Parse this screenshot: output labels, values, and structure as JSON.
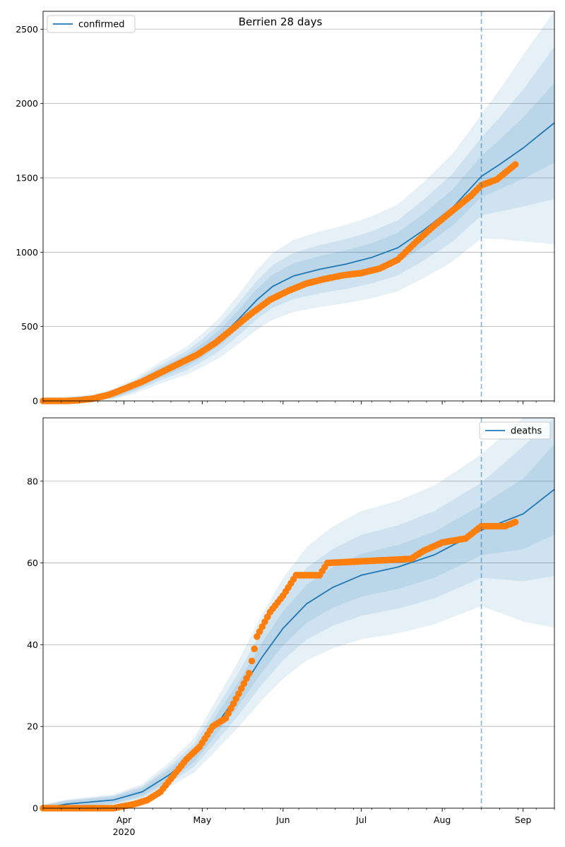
{
  "chart_data": [
    {
      "type": "line",
      "title": "Berrien 28 days",
      "xlabel": "",
      "ylabel": "",
      "x_range": [
        "2020-03-01",
        "2020-09-13"
      ],
      "ylim": [
        0,
        2620
      ],
      "yticks": [
        0,
        500,
        1000,
        1500,
        2000,
        2500
      ],
      "grid": "horizontal",
      "legend": {
        "position": "top-left",
        "entries": [
          "confirmed"
        ]
      },
      "forecast_start": "2020-08-16",
      "series": [
        {
          "name": "confirmed",
          "kind": "model-median",
          "color": "#1f77b4",
          "points": [
            [
              "2020-03-01",
              0
            ],
            [
              "2020-03-10",
              2
            ],
            [
              "2020-03-20",
              15
            ],
            [
              "2020-03-28",
              45
            ],
            [
              "2020-04-05",
              100
            ],
            [
              "2020-04-15",
              190
            ],
            [
              "2020-04-25",
              270
            ],
            [
              "2020-05-01",
              340
            ],
            [
              "2020-05-08",
              430
            ],
            [
              "2020-05-15",
              550
            ],
            [
              "2020-05-22",
              680
            ],
            [
              "2020-05-28",
              770
            ],
            [
              "2020-06-05",
              840
            ],
            [
              "2020-06-15",
              885
            ],
            [
              "2020-06-25",
              920
            ],
            [
              "2020-07-05",
              965
            ],
            [
              "2020-07-15",
              1030
            ],
            [
              "2020-07-25",
              1150
            ],
            [
              "2020-08-05",
              1300
            ],
            [
              "2020-08-16",
              1510
            ],
            [
              "2020-08-23",
              1590
            ],
            [
              "2020-09-01",
              1700
            ],
            [
              "2020-09-13",
              1870
            ]
          ]
        },
        {
          "name": "",
          "kind": "observed",
          "color": "#ff7f0e",
          "points": [
            [
              "2020-03-01",
              0
            ],
            [
              "2020-03-10",
              0
            ],
            [
              "2020-03-15",
              5
            ],
            [
              "2020-03-20",
              15
            ],
            [
              "2020-03-26",
              40
            ],
            [
              "2020-04-01",
              80
            ],
            [
              "2020-04-08",
              130
            ],
            [
              "2020-04-15",
              190
            ],
            [
              "2020-04-22",
              250
            ],
            [
              "2020-04-29",
              310
            ],
            [
              "2020-05-06",
              390
            ],
            [
              "2020-05-13",
              490
            ],
            [
              "2020-05-20",
              590
            ],
            [
              "2020-05-27",
              680
            ],
            [
              "2020-06-03",
              740
            ],
            [
              "2020-06-10",
              790
            ],
            [
              "2020-06-17",
              820
            ],
            [
              "2020-06-24",
              845
            ],
            [
              "2020-07-01",
              860
            ],
            [
              "2020-07-08",
              890
            ],
            [
              "2020-07-15",
              950
            ],
            [
              "2020-07-22",
              1070
            ],
            [
              "2020-07-29",
              1180
            ],
            [
              "2020-08-05",
              1280
            ],
            [
              "2020-08-12",
              1380
            ],
            [
              "2020-08-16",
              1450
            ],
            [
              "2020-08-22",
              1490
            ],
            [
              "2020-08-29",
              1590
            ]
          ]
        }
      ]
    },
    {
      "type": "line",
      "title": "",
      "xlabel": "",
      "ylabel": "",
      "x_range": [
        "2020-03-01",
        "2020-09-13"
      ],
      "ylim": [
        0,
        95.5
      ],
      "yticks": [
        0,
        20,
        40,
        60,
        80
      ],
      "grid": "horizontal",
      "legend": {
        "position": "top-right",
        "entries": [
          "deaths"
        ]
      },
      "forecast_start": "2020-08-16",
      "xtick_labels": [
        {
          "date": "2020-04-01",
          "label": "Apr",
          "sublabel": "2020"
        },
        {
          "date": "2020-05-01",
          "label": "May"
        },
        {
          "date": "2020-06-01",
          "label": "Jun"
        },
        {
          "date": "2020-07-01",
          "label": "Jul"
        },
        {
          "date": "2020-08-01",
          "label": "Aug"
        },
        {
          "date": "2020-09-01",
          "label": "Sep"
        }
      ],
      "series": [
        {
          "name": "deaths",
          "kind": "model-median",
          "color": "#1f77b4",
          "points": [
            [
              "2020-03-01",
              0
            ],
            [
              "2020-03-10",
              1
            ],
            [
              "2020-03-28",
              2
            ],
            [
              "2020-04-08",
              4
            ],
            [
              "2020-04-18",
              8
            ],
            [
              "2020-04-28",
              13
            ],
            [
              "2020-05-06",
              20
            ],
            [
              "2020-05-15",
              28
            ],
            [
              "2020-05-24",
              37
            ],
            [
              "2020-06-01",
              44
            ],
            [
              "2020-06-10",
              50
            ],
            [
              "2020-06-20",
              54
            ],
            [
              "2020-07-01",
              57
            ],
            [
              "2020-07-15",
              59
            ],
            [
              "2020-07-29",
              62
            ],
            [
              "2020-08-16",
              68
            ],
            [
              "2020-09-01",
              72
            ],
            [
              "2020-09-13",
              78
            ]
          ]
        },
        {
          "name": "",
          "kind": "observed",
          "color": "#ff7f0e",
          "points": [
            [
              "2020-03-01",
              0
            ],
            [
              "2020-03-28",
              0
            ],
            [
              "2020-04-05",
              1
            ],
            [
              "2020-04-10",
              2
            ],
            [
              "2020-04-15",
              4
            ],
            [
              "2020-04-20",
              8
            ],
            [
              "2020-04-25",
              12
            ],
            [
              "2020-04-30",
              15
            ],
            [
              "2020-05-05",
              20
            ],
            [
              "2020-05-10",
              22
            ],
            [
              "2020-05-15",
              28
            ],
            [
              "2020-05-19",
              33
            ],
            [
              "2020-05-22",
              42
            ],
            [
              "2020-05-27",
              48
            ],
            [
              "2020-06-01",
              52
            ],
            [
              "2020-06-06",
              57
            ],
            [
              "2020-06-15",
              57
            ],
            [
              "2020-06-18",
              60
            ],
            [
              "2020-07-20",
              61
            ],
            [
              "2020-07-25",
              63
            ],
            [
              "2020-08-01",
              65
            ],
            [
              "2020-08-10",
              66
            ],
            [
              "2020-08-16",
              69
            ],
            [
              "2020-08-25",
              69
            ],
            [
              "2020-08-29",
              70
            ]
          ]
        }
      ]
    }
  ]
}
